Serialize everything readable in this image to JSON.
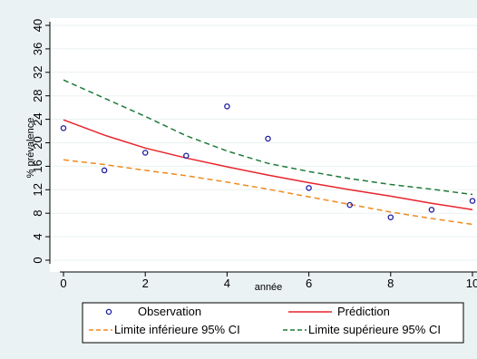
{
  "chart_data": {
    "type": "scatter",
    "xlabel": "année",
    "ylabel": "% prévalence",
    "xlim": [
      0,
      10
    ],
    "ylim": [
      0,
      40
    ],
    "x_ticks": [
      0,
      2,
      4,
      6,
      8,
      10
    ],
    "y_ticks": [
      0,
      4,
      8,
      12,
      16,
      20,
      24,
      28,
      32,
      36,
      40
    ],
    "grid": "horizontal",
    "legend_position": "bottom",
    "series": [
      {
        "name": "Observation",
        "kind": "scatter",
        "color": "#1a1aa0",
        "x": [
          0,
          1,
          2,
          3,
          4,
          5,
          6,
          7,
          8,
          9,
          10
        ],
        "y": [
          22.5,
          15.3,
          18.3,
          17.8,
          26.2,
          20.7,
          12.3,
          9.4,
          7.3,
          8.6,
          10.1
        ]
      },
      {
        "name": "Prédiction",
        "kind": "line",
        "style": "solid",
        "color": "#e8242c",
        "x": [
          0,
          1,
          2,
          3,
          4,
          5,
          6,
          7,
          8,
          9,
          10
        ],
        "y": [
          23.9,
          21.3,
          19.1,
          17.4,
          15.9,
          14.5,
          13.2,
          12.0,
          10.9,
          9.7,
          8.6
        ]
      },
      {
        "name": "Limite inférieure 95% CI",
        "kind": "line",
        "style": "dashed",
        "color": "#f08a1e",
        "x": [
          0,
          1,
          2,
          3,
          4,
          5,
          6,
          7,
          8,
          9,
          10
        ],
        "y": [
          17.1,
          16.3,
          15.3,
          14.4,
          13.3,
          12.1,
          10.8,
          9.5,
          8.2,
          7.1,
          6.1
        ]
      },
      {
        "name": "Limite supérieure 95% CI",
        "kind": "line",
        "style": "dashed",
        "color": "#1e7a3a",
        "x": [
          0,
          1,
          2,
          3,
          4,
          5,
          6,
          7,
          8,
          9,
          10
        ],
        "y": [
          30.7,
          27.6,
          24.5,
          21.2,
          18.6,
          16.5,
          15.1,
          13.9,
          12.9,
          12.1,
          11.2
        ]
      }
    ]
  }
}
